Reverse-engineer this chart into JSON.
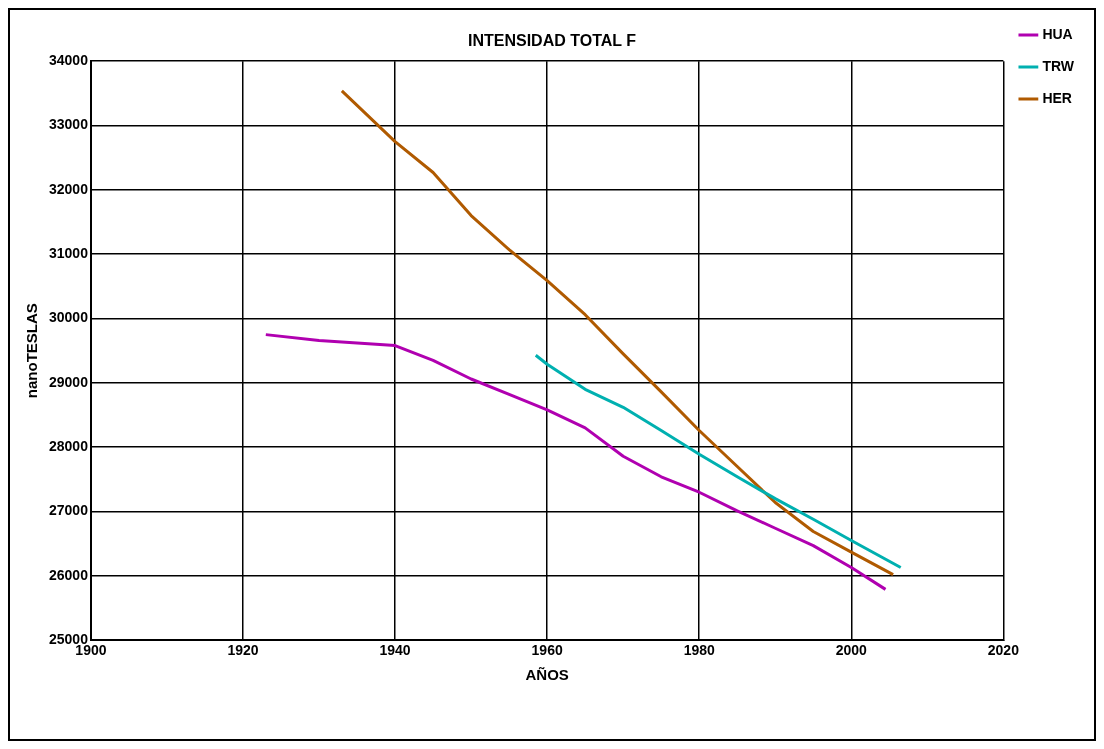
{
  "chart_data": {
    "type": "line",
    "title": "INTENSIDAD TOTAL F",
    "xlabel": "AÑOS",
    "ylabel": "nanoTESLAS",
    "xlim": [
      1900,
      2020
    ],
    "xticks": [
      1900,
      1920,
      1940,
      1960,
      1980,
      2000,
      2020
    ],
    "ylim": [
      25000,
      34000
    ],
    "yticks": [
      25000,
      26000,
      27000,
      28000,
      29000,
      30000,
      31000,
      32000,
      33000,
      34000
    ],
    "grid": true,
    "legend": "right",
    "marker": "none",
    "line_style": "solid",
    "series": [
      {
        "name": "HUA",
        "color": "#b000b0",
        "x": [
          1923,
          1930,
          1935,
          1940,
          1945,
          1950,
          1955,
          1960,
          1965,
          1970,
          1975,
          1980,
          1985,
          1990,
          1995,
          2000,
          2004.5
        ],
        "values": [
          29750,
          29660,
          29620,
          29580,
          29350,
          29060,
          28820,
          28580,
          28300,
          27860,
          27540,
          27300,
          27010,
          26740,
          26470,
          26130,
          25790
        ]
      },
      {
        "name": "TRW",
        "color": "#00b0b0",
        "x": [
          1958.5,
          1960,
          1965,
          1970,
          1975,
          1980,
          1985,
          1990,
          1995,
          2000,
          2006.5
        ],
        "values": [
          29430,
          29290,
          28900,
          28620,
          28260,
          27890,
          27540,
          27200,
          26880,
          26550,
          26130
        ]
      },
      {
        "name": "HER",
        "color": "#b05a00",
        "x": [
          1933,
          1940,
          1945,
          1950,
          1955,
          1960,
          1965,
          1970,
          1975,
          1980,
          1985,
          1990,
          1995,
          2000,
          2005.5
        ],
        "values": [
          33540,
          32750,
          32270,
          31600,
          31070,
          30590,
          30060,
          29450,
          28860,
          28260,
          27700,
          27140,
          26690,
          26370,
          26020
        ]
      }
    ]
  }
}
